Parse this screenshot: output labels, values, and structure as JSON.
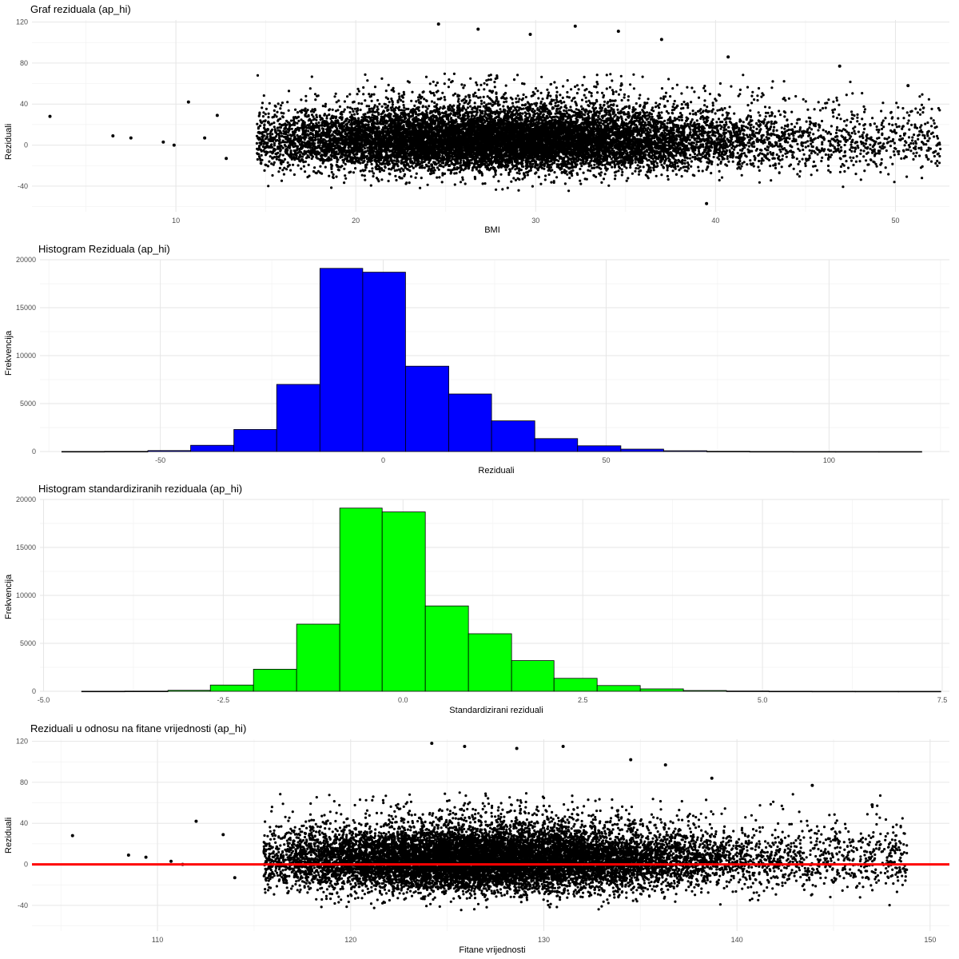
{
  "chart_data": [
    {
      "type": "scatter",
      "title": "Graf reziduala (ap_hi)",
      "xlabel": "BMI",
      "ylabel": "Reziduali",
      "xlim": [
        2,
        53
      ],
      "ylim": [
        -65,
        122
      ],
      "x_ticks": [
        10,
        20,
        30,
        40,
        50
      ],
      "y_ticks": [
        -40,
        0,
        40,
        80,
        120
      ],
      "x_tick_labels": [
        "10",
        "20",
        "30",
        "40",
        "50"
      ],
      "y_tick_labels": [
        "-40",
        "0",
        "40",
        "80",
        "120"
      ],
      "grid": true,
      "point_color": "#000000",
      "cloud": {
        "x_min": 14.5,
        "x_max": 52.5,
        "x_center": 28,
        "y_mean": 3,
        "y_sd": 14
      },
      "outliers": [
        {
          "x": 3.0,
          "y": 28
        },
        {
          "x": 6.5,
          "y": 9
        },
        {
          "x": 7.5,
          "y": 7
        },
        {
          "x": 9.3,
          "y": 3
        },
        {
          "x": 9.9,
          "y": 0
        },
        {
          "x": 10.7,
          "y": 42
        },
        {
          "x": 11.6,
          "y": 7
        },
        {
          "x": 12.3,
          "y": 29
        },
        {
          "x": 12.8,
          "y": -13
        },
        {
          "x": 24.6,
          "y": 118
        },
        {
          "x": 26.8,
          "y": 113
        },
        {
          "x": 29.7,
          "y": 108
        },
        {
          "x": 32.2,
          "y": 116
        },
        {
          "x": 34.6,
          "y": 111
        },
        {
          "x": 37.0,
          "y": 103
        },
        {
          "x": 40.7,
          "y": 86
        },
        {
          "x": 46.9,
          "y": 77
        },
        {
          "x": 50.7,
          "y": 58
        },
        {
          "x": 39.5,
          "y": -57
        }
      ]
    },
    {
      "type": "bar",
      "title": "Histogram Reziduala (ap_hi)",
      "xlabel": "Reziduali",
      "ylabel": "Frekvencija",
      "fill_color": "#0000ff",
      "xlim": [
        -77,
        127
      ],
      "ylim": [
        0,
        20000
      ],
      "x_ticks": [
        -50,
        0,
        50,
        100
      ],
      "y_ticks": [
        0,
        5000,
        10000,
        15000,
        20000
      ],
      "x_tick_labels": [
        "-50",
        "0",
        "50",
        "100"
      ],
      "y_tick_labels": [
        "0",
        "5000",
        "10000",
        "15000",
        "20000"
      ],
      "grid": true,
      "bin_edges": [
        -72.1,
        -62.5,
        -52.8,
        -43.2,
        -33.5,
        -23.9,
        -14.2,
        -4.6,
        5.0,
        14.7,
        24.3,
        34.0,
        43.6,
        53.3,
        62.9,
        72.6,
        82.2,
        91.9,
        101.5,
        111.2,
        120.8
      ],
      "values": [
        10,
        20,
        100,
        650,
        2300,
        7000,
        19100,
        18700,
        8900,
        6000,
        3200,
        1350,
        600,
        250,
        80,
        30,
        10,
        5,
        3,
        2
      ]
    },
    {
      "type": "bar",
      "title": "Histogram standardiziranih reziduala (ap_hi)",
      "xlabel": "Standardizirani reziduali",
      "ylabel": "Frekvencija",
      "fill_color": "#00ff00",
      "xlim": [
        -5.05,
        7.6
      ],
      "ylim": [
        0,
        20000
      ],
      "x_ticks": [
        -5.0,
        -2.5,
        0.0,
        2.5,
        5.0,
        7.5
      ],
      "y_ticks": [
        0,
        5000,
        10000,
        15000,
        20000
      ],
      "x_tick_labels": [
        "-5.0",
        "-2.5",
        "0.0",
        "2.5",
        "5.0",
        "7.5"
      ],
      "y_tick_labels": [
        "0",
        "5000",
        "10000",
        "15000",
        "20000"
      ],
      "grid": true,
      "bin_edges": [
        -4.47,
        -3.87,
        -3.27,
        -2.68,
        -2.08,
        -1.48,
        -0.88,
        -0.29,
        0.31,
        0.91,
        1.51,
        2.1,
        2.7,
        3.3,
        3.9,
        4.5,
        5.09,
        5.69,
        6.29,
        6.89,
        7.48
      ],
      "values": [
        10,
        20,
        100,
        650,
        2300,
        7000,
        19100,
        18700,
        8900,
        6000,
        3200,
        1350,
        600,
        250,
        80,
        30,
        10,
        5,
        3,
        2
      ]
    },
    {
      "type": "scatter",
      "title": "Reziduali u odnosu na fitane vrijednosti (ap_hi)",
      "xlabel": "Fitane vrijednosti",
      "ylabel": "Reziduali",
      "xlim": [
        103.5,
        151
      ],
      "ylim": [
        -65,
        122
      ],
      "x_ticks": [
        110,
        120,
        130,
        140,
        150
      ],
      "y_ticks": [
        -40,
        0,
        40,
        80,
        120
      ],
      "x_tick_labels": [
        "110",
        "120",
        "130",
        "140",
        "150"
      ],
      "y_tick_labels": [
        "-40",
        "0",
        "40",
        "80",
        "120"
      ],
      "grid": true,
      "point_color": "#000000",
      "hline": {
        "y": 0,
        "color": "#ff0000"
      },
      "cloud": {
        "x_min": 115.5,
        "x_max": 148.8,
        "x_center": 127,
        "y_mean": 3,
        "y_sd": 14
      },
      "outliers": [
        {
          "x": 105.6,
          "y": 28
        },
        {
          "x": 108.5,
          "y": 9
        },
        {
          "x": 109.4,
          "y": 7
        },
        {
          "x": 110.7,
          "y": 3
        },
        {
          "x": 111.3,
          "y": 0
        },
        {
          "x": 112.0,
          "y": 42
        },
        {
          "x": 113.4,
          "y": 29
        },
        {
          "x": 114.0,
          "y": -13
        },
        {
          "x": 124.2,
          "y": 118
        },
        {
          "x": 125.9,
          "y": 115
        },
        {
          "x": 128.6,
          "y": 113
        },
        {
          "x": 131.0,
          "y": 115
        },
        {
          "x": 134.5,
          "y": 102
        },
        {
          "x": 136.3,
          "y": 97
        },
        {
          "x": 138.7,
          "y": 84
        },
        {
          "x": 143.9,
          "y": 77
        },
        {
          "x": 147.0,
          "y": 58
        }
      ]
    }
  ]
}
